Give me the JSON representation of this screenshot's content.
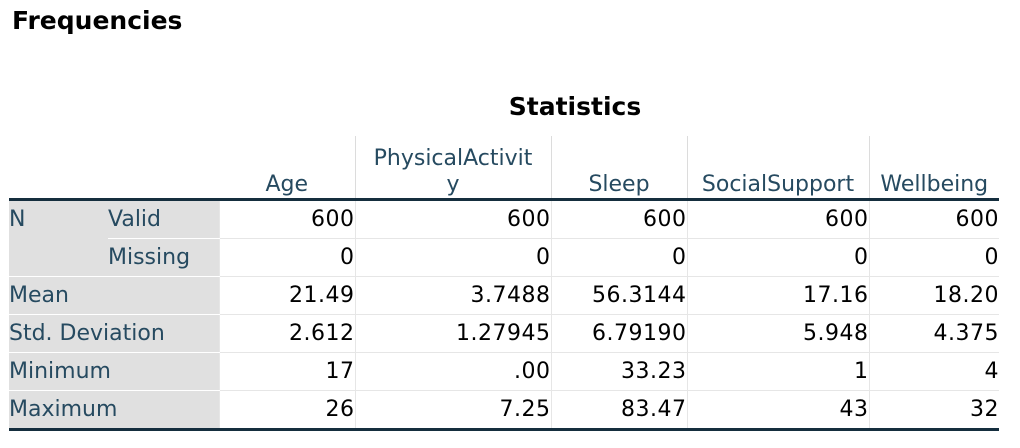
{
  "heading": "Frequencies",
  "table": {
    "title": "Statistics",
    "columns": [
      "Age",
      "PhysicalActivity",
      "Sleep",
      "SocialSupport",
      "Wellbeing"
    ],
    "column_wrapped": {
      "physical_line1": "PhysicalActivit",
      "physical_line2": "y"
    },
    "rows": [
      {
        "group": "N",
        "label": "Valid",
        "values": [
          "600",
          "600",
          "600",
          "600",
          "600"
        ]
      },
      {
        "group": "",
        "label": "Missing",
        "values": [
          "0",
          "0",
          "0",
          "0",
          "0"
        ]
      },
      {
        "label": "Mean",
        "values": [
          "21.49",
          "3.7488",
          "56.3144",
          "17.16",
          "18.20"
        ]
      },
      {
        "label": "Std. Deviation",
        "values": [
          "2.612",
          "1.27945",
          "6.79190",
          "5.948",
          "4.375"
        ]
      },
      {
        "label": "Minimum",
        "values": [
          "17",
          ".00",
          "33.23",
          "1",
          "4"
        ]
      },
      {
        "label": "Maximum",
        "values": [
          "26",
          "7.25",
          "83.47",
          "43",
          "32"
        ]
      }
    ]
  },
  "colors": {
    "label_text": "#264a60",
    "label_bg": "#e0e0e0",
    "rule": "#152e3e"
  }
}
